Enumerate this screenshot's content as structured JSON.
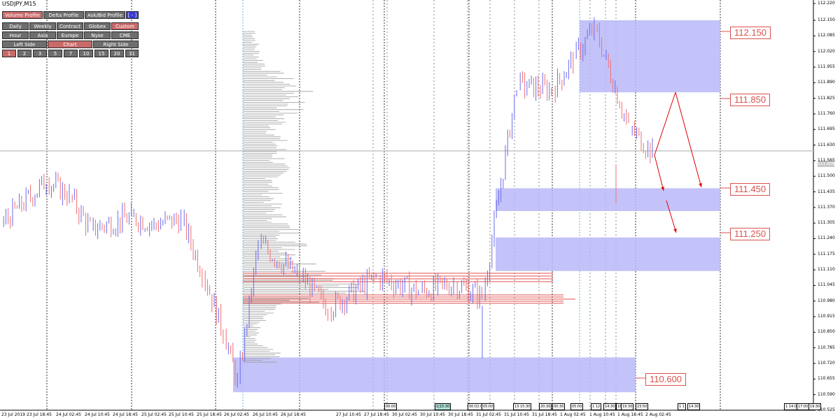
{
  "symbol": {
    "title": "USDJPY,M15"
  },
  "panel": {
    "row1": [
      {
        "label": "Volume Profile",
        "active": true
      },
      {
        "label": "Delta Profile",
        "active": false
      },
      {
        "label": "Ask/Bid Profile",
        "active": false
      },
      {
        "label": "[ - ]",
        "active": false,
        "style": "blue"
      }
    ],
    "row2": [
      {
        "label": "Daily",
        "active": false
      },
      {
        "label": "Weekly",
        "active": false
      },
      {
        "label": "Contract",
        "active": false
      },
      {
        "label": "Globex",
        "active": false
      },
      {
        "label": "Custom",
        "active": true
      }
    ],
    "row3": [
      {
        "label": "Hour",
        "active": false
      },
      {
        "label": "Asia",
        "active": false
      },
      {
        "label": "Europe",
        "active": false
      },
      {
        "label": "Nyse",
        "active": false
      },
      {
        "label": "CME",
        "active": false
      }
    ],
    "row4": [
      {
        "label": "Left Side",
        "active": false
      },
      {
        "label": "Chart",
        "active": true
      },
      {
        "label": "Right Side",
        "active": false
      }
    ],
    "row5": [
      {
        "label": "1",
        "active": true
      },
      {
        "label": "2",
        "active": false
      },
      {
        "label": "3",
        "active": false
      },
      {
        "label": "5",
        "active": false
      },
      {
        "label": "7",
        "active": false
      },
      {
        "label": "10",
        "active": false
      },
      {
        "label": "15",
        "active": false
      },
      {
        "label": "20",
        "active": false
      },
      {
        "label": "31",
        "active": false
      }
    ]
  },
  "colors": {
    "zone_fill": "#b8b8f8",
    "zone_label": "#d9534f",
    "candle_up": "#6b6bf0",
    "candle_down": "#f07070",
    "grid_day": "#000000",
    "grid_session": "#3aa3d6",
    "profile_bar": "#9a9a9a",
    "profile_poc": "#e05050",
    "arrow": "#e00000"
  },
  "zones": [
    {
      "label": "112.150",
      "top": 112.15,
      "bottom": 111.85
    },
    {
      "label": "111.850",
      "top": 111.85,
      "bottom": 111.85
    },
    {
      "label": "111.450",
      "top": 111.45,
      "bottom": 111.35
    },
    {
      "label": "111.250",
      "top": 111.25,
      "bottom": 111.1
    },
    {
      "label": "110.600",
      "top": 110.74,
      "bottom": 110.6
    }
  ],
  "price_axis": {
    "ticks": [
      "112.220",
      "112.150",
      "112.085",
      "112.020",
      "111.955",
      "111.890",
      "111.825",
      "111.760",
      "111.695",
      "111.630",
      "111.565",
      "111.500",
      "111.435",
      "111.370",
      "111.305",
      "111.240",
      "111.175",
      "111.110",
      "111.045",
      "110.980",
      "110.915",
      "110.850",
      "110.785",
      "110.720",
      "110.655",
      "110.590",
      "110.525"
    ],
    "current_price": "111.606"
  },
  "time_axis": {
    "labels": [
      "23 Jul 2019",
      "23 Jul 18:45",
      "24 Jul 02:45",
      "24 Jul 10:45",
      "24 Jul 18:45",
      "25 Jul 02:45",
      "25 Jul 10:45",
      "25 Jul 18:45",
      "26 Jul 02:45",
      "26 Jul 10:45",
      "26 Jul 18:45",
      "27 Jul 10:45",
      "27 Jul 18:45",
      "30 Jul 02:45",
      "30 Jul 10:45",
      "30 Jul 18:45",
      "31 Jul 02:45",
      "31 Jul 10:45",
      "31 Jul 18:45",
      "1 Aug 02:45",
      "1 Aug 10:45",
      "1 Aug 18:45",
      "2 Aug 02:45"
    ],
    "session_tags": [
      {
        "label": "00:00",
        "highlight": false
      },
      {
        "label": "1|15:30",
        "highlight": true
      },
      {
        "label": "00:02:00",
        "highlight": false
      },
      {
        "label": "05:00",
        "highlight": false
      },
      {
        "label": "13 15:30",
        "highlight": false
      },
      {
        "label": "20:30",
        "highlight": false
      },
      {
        "label": "00:30",
        "highlight": false
      },
      {
        "label": "05:00",
        "highlight": false
      },
      {
        "label": "1 12",
        "highlight": false
      },
      {
        "label": "14:30",
        "highlight": false
      },
      {
        "label": "18",
        "highlight": false
      },
      {
        "label": "19:30",
        "highlight": false
      },
      {
        "label": "23:50",
        "highlight": false
      },
      {
        "label": "1 1",
        "highlight": false
      },
      {
        "label": "14:30",
        "highlight": false
      },
      {
        "label": "1 14:00",
        "highlight": false
      },
      {
        "label": "17:00",
        "highlight": false
      },
      {
        "label": "19:30",
        "highlight": false
      }
    ]
  },
  "chart_data": {
    "type": "line",
    "title": "USDJPY,M15",
    "x": [
      "23 Jul 2019",
      "23 Jul 18:45",
      "24 Jul 02:45",
      "24 Jul 10:45",
      "24 Jul 18:45",
      "25 Jul 02:45",
      "25 Jul 10:45",
      "25 Jul 18:45",
      "26 Jul 02:45",
      "26 Jul 10:45",
      "26 Jul 18:45",
      "27 Jul 10:45",
      "27 Jul 18:45",
      "30 Jul 02:45",
      "30 Jul 10:45",
      "30 Jul 18:45",
      "31 Jul 02:45",
      "31 Jul 10:45",
      "31 Jul 18:45",
      "1 Aug 02:45",
      "1 Aug 10:45",
      "1 Aug 18:45",
      "2 Aug 02:45"
    ],
    "series": [
      {
        "values": [
          111.3,
          111.48,
          111.42,
          111.28,
          111.33,
          111.3,
          111.32,
          111.1,
          110.85,
          110.64,
          111.22,
          111.08,
          110.95,
          111.08,
          111.02,
          111.05,
          111.0,
          111.88,
          111.86,
          111.99,
          112.12,
          111.7,
          111.6
        ]
      }
    ],
    "ylim": [
      110.525,
      112.22
    ],
    "ylabel": "",
    "xlabel": "",
    "grid": true
  }
}
